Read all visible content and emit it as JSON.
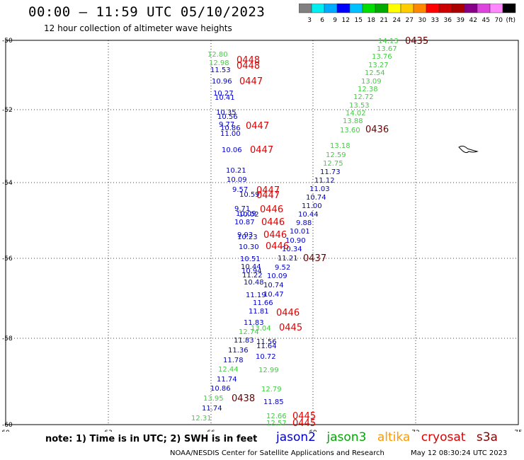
{
  "title": "00:00 – 11:59 UTC 05/10/2023",
  "subtitle": "12 hour collection of altimeter wave heights",
  "legend": {
    "colors": [
      "#808080",
      "#00eeee",
      "#00aaff",
      "#0000ff",
      "#00c0ff",
      "#00dd00",
      "#00aa00",
      "#ffff00",
      "#ffcc00",
      "#ff8800",
      "#ff0000",
      "#cc0000",
      "#aa0000",
      "#880088",
      "#dd44dd",
      "#ff88ff",
      "#000000"
    ],
    "labels": [
      "3",
      "6",
      "9",
      "12",
      "15",
      "18",
      "21",
      "24",
      "27",
      "30",
      "33",
      "36",
      "39",
      "42",
      "45",
      "70",
      "(ft)"
    ]
  },
  "axes": {
    "x_ticks": [
      "60",
      "63",
      "66",
      "69",
      "72",
      "75"
    ],
    "y_ticks": [
      "-50",
      "-52",
      "-54",
      "-56",
      "-58",
      "-60"
    ]
  },
  "tracks": {
    "left": [
      {
        "v": "12.80",
        "c": "green"
      },
      {
        "v": "12.98",
        "c": "green"
      },
      {
        "v": "11.53",
        "c": "blue"
      },
      {
        "v": "10.96",
        "c": "blue"
      },
      {
        "v": "10.27",
        "c": "blue"
      },
      {
        "v": "10.41",
        "c": "blue"
      },
      {
        "v": "10.35",
        "c": "blue"
      },
      {
        "v": "10.56",
        "c": "blue"
      },
      {
        "v": "9.77",
        "c": "blue"
      },
      {
        "v": "10.86",
        "c": "blue"
      },
      {
        "v": "11.00",
        "c": "blue"
      },
      {
        "v": "10.06",
        "c": "blue"
      },
      {
        "v": "10.21",
        "c": "blue"
      },
      {
        "v": "10.09",
        "c": "blue"
      },
      {
        "v": "9.57",
        "c": "blue"
      },
      {
        "v": "10.59",
        "c": "blue"
      },
      {
        "v": "9.71",
        "c": "blue"
      },
      {
        "v": "10.09",
        "c": "blue"
      },
      {
        "v": "10.02",
        "c": "blue"
      },
      {
        "v": "10.87",
        "c": "blue"
      },
      {
        "v": "9.93",
        "c": "blue"
      },
      {
        "v": "10.23",
        "c": "blue"
      },
      {
        "v": "10.30",
        "c": "blue"
      },
      {
        "v": "10.51",
        "c": "blue"
      },
      {
        "v": "10.44",
        "c": "blue"
      },
      {
        "v": "10.94",
        "c": "blue"
      },
      {
        "v": "11.22",
        "c": "blue"
      },
      {
        "v": "10.48",
        "c": "blue"
      },
      {
        "v": "11.19",
        "c": "blue"
      },
      {
        "v": "11.66",
        "c": "blue"
      },
      {
        "v": "11.81",
        "c": "blue"
      },
      {
        "v": "11.83",
        "c": "blue"
      },
      {
        "v": "11.83",
        "c": "blue"
      },
      {
        "v": "11.36",
        "c": "blue"
      },
      {
        "v": "11.78",
        "c": "blue"
      },
      {
        "v": "11.74",
        "c": "blue"
      },
      {
        "v": "10.86",
        "c": "blue"
      },
      {
        "v": "11.74",
        "c": "blue"
      },
      {
        "v": "12.74",
        "c": "green"
      },
      {
        "v": "13.04",
        "c": "green"
      },
      {
        "v": "12.44",
        "c": "green"
      },
      {
        "v": "12.99",
        "c": "green"
      },
      {
        "v": "12.79",
        "c": "green"
      },
      {
        "v": "13.95",
        "c": "green"
      },
      {
        "v": "12.31",
        "c": "green"
      },
      {
        "v": "12.66",
        "c": "green"
      },
      {
        "v": "12.57",
        "c": "green"
      }
    ],
    "right": [
      {
        "v": "14.13",
        "c": "green"
      },
      {
        "v": "13.67",
        "c": "green"
      },
      {
        "v": "13.76",
        "c": "green"
      },
      {
        "v": "13.27",
        "c": "green"
      },
      {
        "v": "12.54",
        "c": "green"
      },
      {
        "v": "13.09",
        "c": "green"
      },
      {
        "v": "12.38",
        "c": "green"
      },
      {
        "v": "12.72",
        "c": "green"
      },
      {
        "v": "13.53",
        "c": "green"
      },
      {
        "v": "14.02",
        "c": "green"
      },
      {
        "v": "13.88",
        "c": "green"
      },
      {
        "v": "13.60",
        "c": "green"
      },
      {
        "v": "13.18",
        "c": "green"
      },
      {
        "v": "12.59",
        "c": "green"
      },
      {
        "v": "12.75",
        "c": "green"
      },
      {
        "v": "11.73",
        "c": "blue"
      },
      {
        "v": "11.12",
        "c": "blue"
      },
      {
        "v": "11.03",
        "c": "blue"
      },
      {
        "v": "10.74",
        "c": "blue"
      },
      {
        "v": "11.00",
        "c": "blue"
      },
      {
        "v": "10.44",
        "c": "blue"
      },
      {
        "v": "9.88",
        "c": "blue"
      },
      {
        "v": "10.01",
        "c": "blue"
      },
      {
        "v": "10.90",
        "c": "blue"
      },
      {
        "v": "10.34",
        "c": "blue"
      },
      {
        "v": "11.21",
        "c": "blue"
      },
      {
        "v": "9.52",
        "c": "blue"
      },
      {
        "v": "10.09",
        "c": "blue"
      },
      {
        "v": "10.74",
        "c": "blue"
      },
      {
        "v": "10.47",
        "c": "blue"
      },
      {
        "v": "11.56",
        "c": "blue"
      },
      {
        "v": "11.64",
        "c": "blue"
      },
      {
        "v": "10.72",
        "c": "blue"
      },
      {
        "v": "11.85",
        "c": "blue"
      }
    ],
    "time_labels": [
      {
        "t": "0448",
        "c": "red"
      },
      {
        "t": "0448",
        "c": "red"
      },
      {
        "t": "0447",
        "c": "red"
      },
      {
        "t": "0447",
        "c": "red"
      },
      {
        "t": "0447",
        "c": "red"
      },
      {
        "t": "0447",
        "c": "red"
      },
      {
        "t": "0447",
        "c": "red"
      },
      {
        "t": "0446",
        "c": "red"
      },
      {
        "t": "0446",
        "c": "red"
      },
      {
        "t": "0446",
        "c": "red"
      },
      {
        "t": "0446",
        "c": "red"
      },
      {
        "t": "0446",
        "c": "red"
      },
      {
        "t": "0445",
        "c": "red"
      },
      {
        "t": "0445",
        "c": "red"
      },
      {
        "t": "0445",
        "c": "red"
      },
      {
        "t": "0435",
        "c": "darkred"
      },
      {
        "t": "0436",
        "c": "darkred"
      },
      {
        "t": "0437",
        "c": "darkred"
      },
      {
        "t": "0438",
        "c": "darkred"
      }
    ]
  },
  "footer": {
    "note": "note: 1) Time is in UTC; 2) SWH is in feet",
    "satellites": [
      {
        "name": "jason2",
        "color": "#0000cc"
      },
      {
        "name": "jason3",
        "color": "#00aa00"
      },
      {
        "name": "altika",
        "color": "#ff9900"
      },
      {
        "name": "cryosat",
        "color": "#dd0000"
      },
      {
        "name": "s3a",
        "color": "#880000"
      }
    ],
    "credit": "NOAA/NESDIS Center for Satellite Applications and Research",
    "timestamp": "May 12 08:30:24 UTC 2023"
  }
}
